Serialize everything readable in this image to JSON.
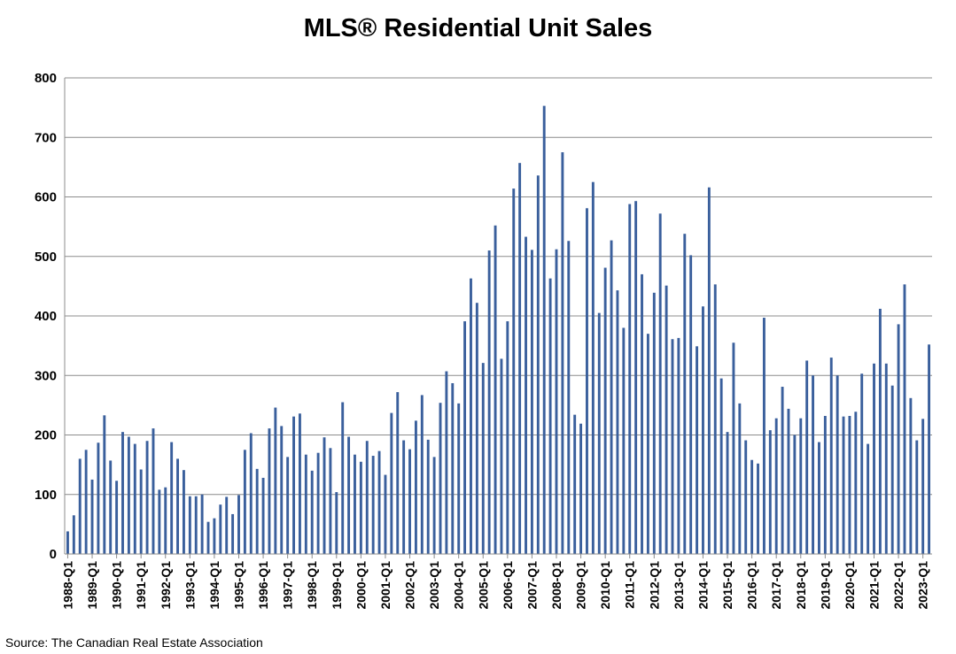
{
  "chart_data": {
    "type": "bar",
    "title": "MLS® Residential Unit Sales",
    "xlabel": "",
    "ylabel": "",
    "ylim": [
      0,
      800
    ],
    "yticks": [
      0,
      100,
      200,
      300,
      400,
      500,
      600,
      700,
      800
    ],
    "grid": true,
    "legend": "none",
    "colors": {
      "bar": "#3a5f9c",
      "grid": "#8c8c8c",
      "axis": "#8c8c8c"
    },
    "tick_labels": [
      "1988-Q1",
      "1989-Q1",
      "1990-Q1",
      "1991-Q1",
      "1992-Q1",
      "1993-Q1",
      "1994-Q1",
      "1995-Q1",
      "1996-Q1",
      "1997-Q1",
      "1998-Q1",
      "1999-Q1",
      "2000-Q1",
      "2001-Q1",
      "2002-Q1",
      "2003-Q1",
      "2004-Q1",
      "2005-Q1",
      "2006-Q1",
      "2007-Q1",
      "2008-Q1",
      "2009-Q1",
      "2010-Q1",
      "2011-Q1",
      "2012-Q1",
      "2013-Q1",
      "2014-Q1",
      "2015-Q1",
      "2016-Q1",
      "2017-Q1",
      "2018-Q1",
      "2019-Q1",
      "2020-Q1",
      "2021-Q1",
      "2022-Q1",
      "2023-Q1"
    ],
    "start_year": 1988,
    "values": [
      38,
      65,
      160,
      175,
      125,
      187,
      233,
      157,
      123,
      205,
      197,
      185,
      142,
      190,
      211,
      108,
      112,
      188,
      160,
      141,
      97,
      97,
      100,
      54,
      60,
      83,
      96,
      67,
      99,
      175,
      203,
      143,
      128,
      211,
      246,
      215,
      163,
      231,
      236,
      167,
      140,
      170,
      196,
      178,
      104,
      255,
      197,
      167,
      155,
      190,
      165,
      173,
      133,
      237,
      272,
      191,
      176,
      224,
      267,
      192,
      163,
      254,
      307,
      287,
      253,
      391,
      463,
      422,
      321,
      510,
      552,
      328,
      391,
      614,
      657,
      533,
      511,
      636,
      753,
      463,
      512,
      675,
      526,
      234,
      219,
      581,
      625,
      405,
      481,
      527,
      443,
      380,
      588,
      593,
      470,
      370,
      439,
      572,
      451,
      361,
      363,
      538,
      502,
      349,
      416,
      616,
      453,
      295,
      205,
      355,
      253,
      191,
      158,
      152,
      397,
      208,
      228,
      281,
      244,
      200,
      228,
      325,
      300,
      188,
      232,
      330,
      300,
      231,
      232,
      239,
      303,
      185,
      320,
      412,
      320,
      283,
      386,
      453,
      262,
      191,
      227,
      352
    ]
  },
  "source": "Source: The Canadian Real Estate Association"
}
